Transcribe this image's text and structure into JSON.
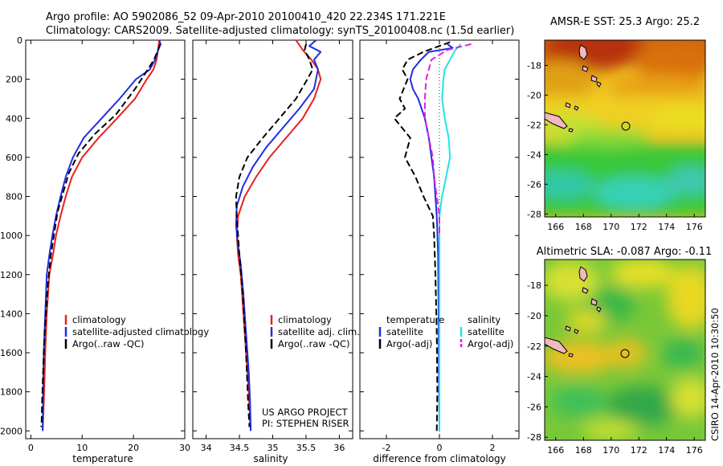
{
  "header": {
    "line1": "Argo profile: AO 5902086_52 09-Apr-2010 20100410_420 22.234S 171.221E",
    "line2": "Climatology: CARS2009. Satellite-adjusted climatology: synTS_20100408.nc (1.5d earlier)"
  },
  "side_stamp": "CSIRO 14-Apr-2010 10:30:50",
  "colors": {
    "climatology": "#e82020",
    "satellite": "#1f2fe0",
    "argo": "#000000",
    "salinity_satellite": "#22e4e4",
    "salinity_argo": "#e01fe0"
  },
  "chart_data": [
    {
      "type": "line",
      "xlabel": "temperature",
      "ylabel": "",
      "xlim": [
        -1,
        30
      ],
      "ylim": [
        2040,
        0
      ],
      "y_reversed": true,
      "xticks": [
        "0",
        "10",
        "20",
        "30"
      ],
      "yticks": [
        "0",
        "200",
        "400",
        "600",
        "800",
        "1000",
        "1200",
        "1400",
        "1600",
        "1800",
        "2000"
      ],
      "legend": [
        "climatology",
        "satellite-adjusted climatology",
        "Argo(..raw -QC)"
      ],
      "series": [
        {
          "name": "climatology",
          "color": "#e82020",
          "dash": "",
          "x": [
            25.0,
            24.8,
            24.5,
            23.9,
            22.6,
            20.3,
            16.8,
            13.2,
            10.0,
            8.0,
            6.8,
            5.8,
            4.9,
            4.3,
            3.6,
            3.1,
            2.8,
            2.6,
            2.4,
            2.3
          ],
          "y": [
            0,
            50,
            100,
            150,
            200,
            300,
            400,
            500,
            600,
            700,
            800,
            900,
            1000,
            1100,
            1200,
            1400,
            1600,
            1800,
            1950,
            2000
          ]
        },
        {
          "name": "satellite-adjusted climatology",
          "color": "#1f2fe0",
          "dash": "",
          "x": [
            25.0,
            25.3,
            24.8,
            24.2,
            23.2,
            20.5,
            17.3,
            13.8,
            10.3,
            8.2,
            6.8,
            5.8,
            4.9,
            4.2,
            3.6,
            3.1,
            2.8,
            2.5,
            2.4,
            2.3
          ],
          "y": [
            0,
            20,
            50,
            100,
            150,
            200,
            300,
            400,
            500,
            600,
            700,
            800,
            900,
            1000,
            1100,
            1200,
            1400,
            1600,
            1800,
            2000
          ]
        },
        {
          "name": "Argo(..raw -QC)",
          "color": "#000000",
          "dash": "8,4",
          "x": [
            25.2,
            24.8,
            24.0,
            22.8,
            20.3,
            16.6,
            12.5,
            9.3,
            7.4,
            6.3,
            5.2,
            4.6,
            3.9,
            3.3,
            2.7,
            2.4,
            2.2,
            2.1,
            2.0
          ],
          "y": [
            20,
            50,
            100,
            150,
            250,
            380,
            480,
            580,
            680,
            780,
            880,
            980,
            1100,
            1250,
            1500,
            1700,
            1850,
            1960,
            1980
          ]
        }
      ]
    },
    {
      "type": "line",
      "xlabel": "salinity",
      "ylabel": "",
      "xlim": [
        33.8,
        36.2
      ],
      "ylim": [
        2040,
        0
      ],
      "y_reversed": true,
      "xticks": [
        "34",
        "34.5",
        "35",
        "35.5",
        "36"
      ],
      "legend": [
        "climatology",
        "satellite adj. clim.",
        "Argo(..raw -QC)"
      ],
      "annotation": [
        "US ARGO PROJECT",
        "PI: STEPHEN RISER"
      ],
      "series": [
        {
          "name": "climatology",
          "color": "#e82020",
          "dash": "",
          "x": [
            35.35,
            35.45,
            35.58,
            35.68,
            35.72,
            35.62,
            35.45,
            35.2,
            34.95,
            34.75,
            34.58,
            34.48,
            34.46,
            34.48,
            34.52,
            34.56,
            34.6,
            34.64,
            34.66,
            34.67
          ],
          "y": [
            0,
            50,
            100,
            150,
            200,
            300,
            400,
            500,
            600,
            700,
            800,
            900,
            1000,
            1100,
            1200,
            1400,
            1600,
            1800,
            1950,
            2000
          ]
        },
        {
          "name": "satellite adj. clim.",
          "color": "#1f2fe0",
          "dash": "",
          "x": [
            35.65,
            35.55,
            35.72,
            35.62,
            35.68,
            35.62,
            35.4,
            35.15,
            34.9,
            34.7,
            34.55,
            34.46,
            34.45,
            34.48,
            34.52,
            34.56,
            34.6,
            34.64,
            34.66,
            34.67
          ],
          "y": [
            0,
            30,
            60,
            100,
            150,
            250,
            350,
            450,
            550,
            650,
            750,
            850,
            950,
            1050,
            1150,
            1300,
            1500,
            1700,
            1850,
            2000
          ]
        },
        {
          "name": "Argo(..raw -QC)",
          "color": "#000000",
          "dash": "8,4",
          "x": [
            35.5,
            35.48,
            35.55,
            35.6,
            35.52,
            35.35,
            35.1,
            34.85,
            34.62,
            34.5,
            34.45,
            34.46,
            34.5,
            34.55,
            34.6,
            34.63,
            34.65
          ],
          "y": [
            20,
            50,
            100,
            150,
            200,
            300,
            400,
            500,
            600,
            700,
            800,
            900,
            1100,
            1300,
            1600,
            1850,
            1980
          ]
        }
      ]
    },
    {
      "type": "line",
      "xlabel": "difference from climatology",
      "ylabel": "",
      "xlim": [
        -3,
        3
      ],
      "ylim": [
        2040,
        0
      ],
      "y_reversed": true,
      "xticks": [
        "-2",
        "0",
        "2"
      ],
      "legend_temperature": [
        "temperature",
        "satellite",
        "Argo(-adj)"
      ],
      "legend_salinity": [
        "salinity",
        "satellite",
        "Argo(-adj)"
      ],
      "series": [
        {
          "name": "temperature satellite",
          "color": "#1f2fe0",
          "dash": "",
          "x": [
            0.3,
            0.5,
            -0.4,
            -0.7,
            -1.0,
            -1.1,
            -1.0,
            -0.8,
            -0.55,
            -0.4,
            -0.3,
            -0.2,
            -0.15,
            -0.1,
            -0.05,
            -0.03,
            -0.02,
            0.0
          ],
          "y": [
            20,
            40,
            60,
            100,
            150,
            200,
            250,
            300,
            400,
            500,
            600,
            700,
            800,
            900,
            1100,
            1400,
            1700,
            2000
          ]
        },
        {
          "name": "temperature Argo(-adj)",
          "color": "#000000",
          "dash": "8,4",
          "x": [
            0.4,
            -0.6,
            -1.2,
            -1.4,
            -1.2,
            -1.5,
            -1.3,
            -1.7,
            -1.4,
            -1.1,
            -1.3,
            -0.9,
            -0.6,
            -0.25,
            -0.2,
            -0.15,
            -0.1,
            -0.08,
            -0.1
          ],
          "y": [
            10,
            60,
            100,
            150,
            200,
            300,
            350,
            400,
            450,
            500,
            600,
            700,
            800,
            900,
            1000,
            1200,
            1500,
            1800,
            2000
          ]
        },
        {
          "name": "salinity satellite",
          "color": "#22e4e4",
          "dash": "",
          "x": [
            0.8,
            0.6,
            0.4,
            0.2,
            0.15,
            0.1,
            0.2,
            0.35,
            0.4,
            0.25,
            0.1,
            0.0,
            0.0,
            0.0
          ],
          "y": [
            20,
            50,
            100,
            150,
            200,
            300,
            400,
            500,
            600,
            700,
            800,
            900,
            1100,
            2000
          ]
        },
        {
          "name": "salinity Argo(-adj)",
          "color": "#e01fe0",
          "dash": "8,4",
          "x": [
            1.2,
            0.3,
            -0.3,
            -0.5,
            -0.55,
            -0.55,
            -0.4,
            -0.25,
            -0.2,
            -0.1,
            0.0,
            0.0
          ],
          "y": [
            20,
            50,
            100,
            200,
            300,
            400,
            500,
            600,
            700,
            800,
            900,
            1000
          ]
        }
      ]
    },
    {
      "type": "heatmap",
      "title": "AMSR-E SST: 25.3 Argo: 25.2",
      "xticks": [
        "166",
        "168",
        "170",
        "172",
        "174",
        "176"
      ],
      "yticks": [
        "-18",
        "-20",
        "-22",
        "-24",
        "-26",
        "-28"
      ],
      "marker": {
        "lon": 171.221,
        "lat": -22.234
      }
    },
    {
      "type": "heatmap",
      "title": "Altimetric SLA: -0.087 Argo: -0.11",
      "xticks": [
        "166",
        "168",
        "170",
        "172",
        "174",
        "176"
      ],
      "yticks": [
        "-18",
        "-20",
        "-22",
        "-24",
        "-26",
        "-28"
      ],
      "marker": {
        "lon": 171.221,
        "lat": -22.234
      }
    }
  ]
}
